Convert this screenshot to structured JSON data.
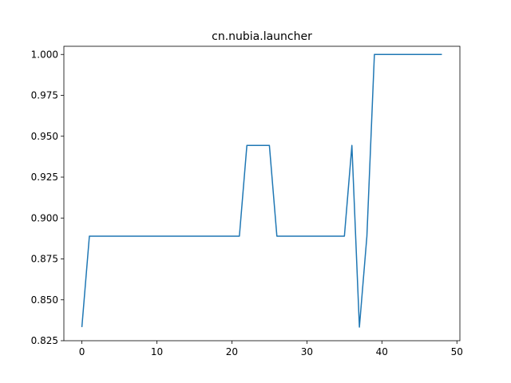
{
  "chart_data": {
    "type": "line",
    "title": "cn.nubia.launcher",
    "xlabel": "",
    "ylabel": "",
    "xlim": [
      -2.4,
      50.4
    ],
    "ylim": [
      0.825,
      1.005
    ],
    "xticks": [
      0,
      10,
      20,
      30,
      40,
      50
    ],
    "xtick_labels": [
      "0",
      "10",
      "20",
      "30",
      "40",
      "50"
    ],
    "yticks": [
      0.825,
      0.85,
      0.875,
      0.9,
      0.925,
      0.95,
      0.975,
      1.0
    ],
    "ytick_labels": [
      "0.825",
      "0.850",
      "0.875",
      "0.900",
      "0.925",
      "0.950",
      "0.975",
      "1.000"
    ],
    "grid": false,
    "legend": "none",
    "series": [
      {
        "color": "#1f77b4",
        "x": [
          0,
          1,
          2,
          3,
          4,
          5,
          6,
          7,
          8,
          9,
          10,
          11,
          12,
          13,
          14,
          15,
          16,
          17,
          18,
          19,
          20,
          21,
          22,
          23,
          24,
          25,
          26,
          27,
          28,
          29,
          30,
          31,
          32,
          33,
          34,
          35,
          36,
          37,
          38,
          39,
          40,
          41,
          42,
          43,
          44,
          45,
          46,
          47,
          48
        ],
        "y": [
          0.8333,
          0.8889,
          0.8889,
          0.8889,
          0.8889,
          0.8889,
          0.8889,
          0.8889,
          0.8889,
          0.8889,
          0.8889,
          0.8889,
          0.8889,
          0.8889,
          0.8889,
          0.8889,
          0.8889,
          0.8889,
          0.8889,
          0.8889,
          0.8889,
          0.8889,
          0.9444,
          0.9444,
          0.9444,
          0.9444,
          0.8889,
          0.8889,
          0.8889,
          0.8889,
          0.8889,
          0.8889,
          0.8889,
          0.8889,
          0.8889,
          0.8889,
          0.9444,
          0.8333,
          0.8889,
          1.0,
          1.0,
          1.0,
          1.0,
          1.0,
          1.0,
          1.0,
          1.0,
          1.0,
          1.0
        ]
      }
    ]
  }
}
